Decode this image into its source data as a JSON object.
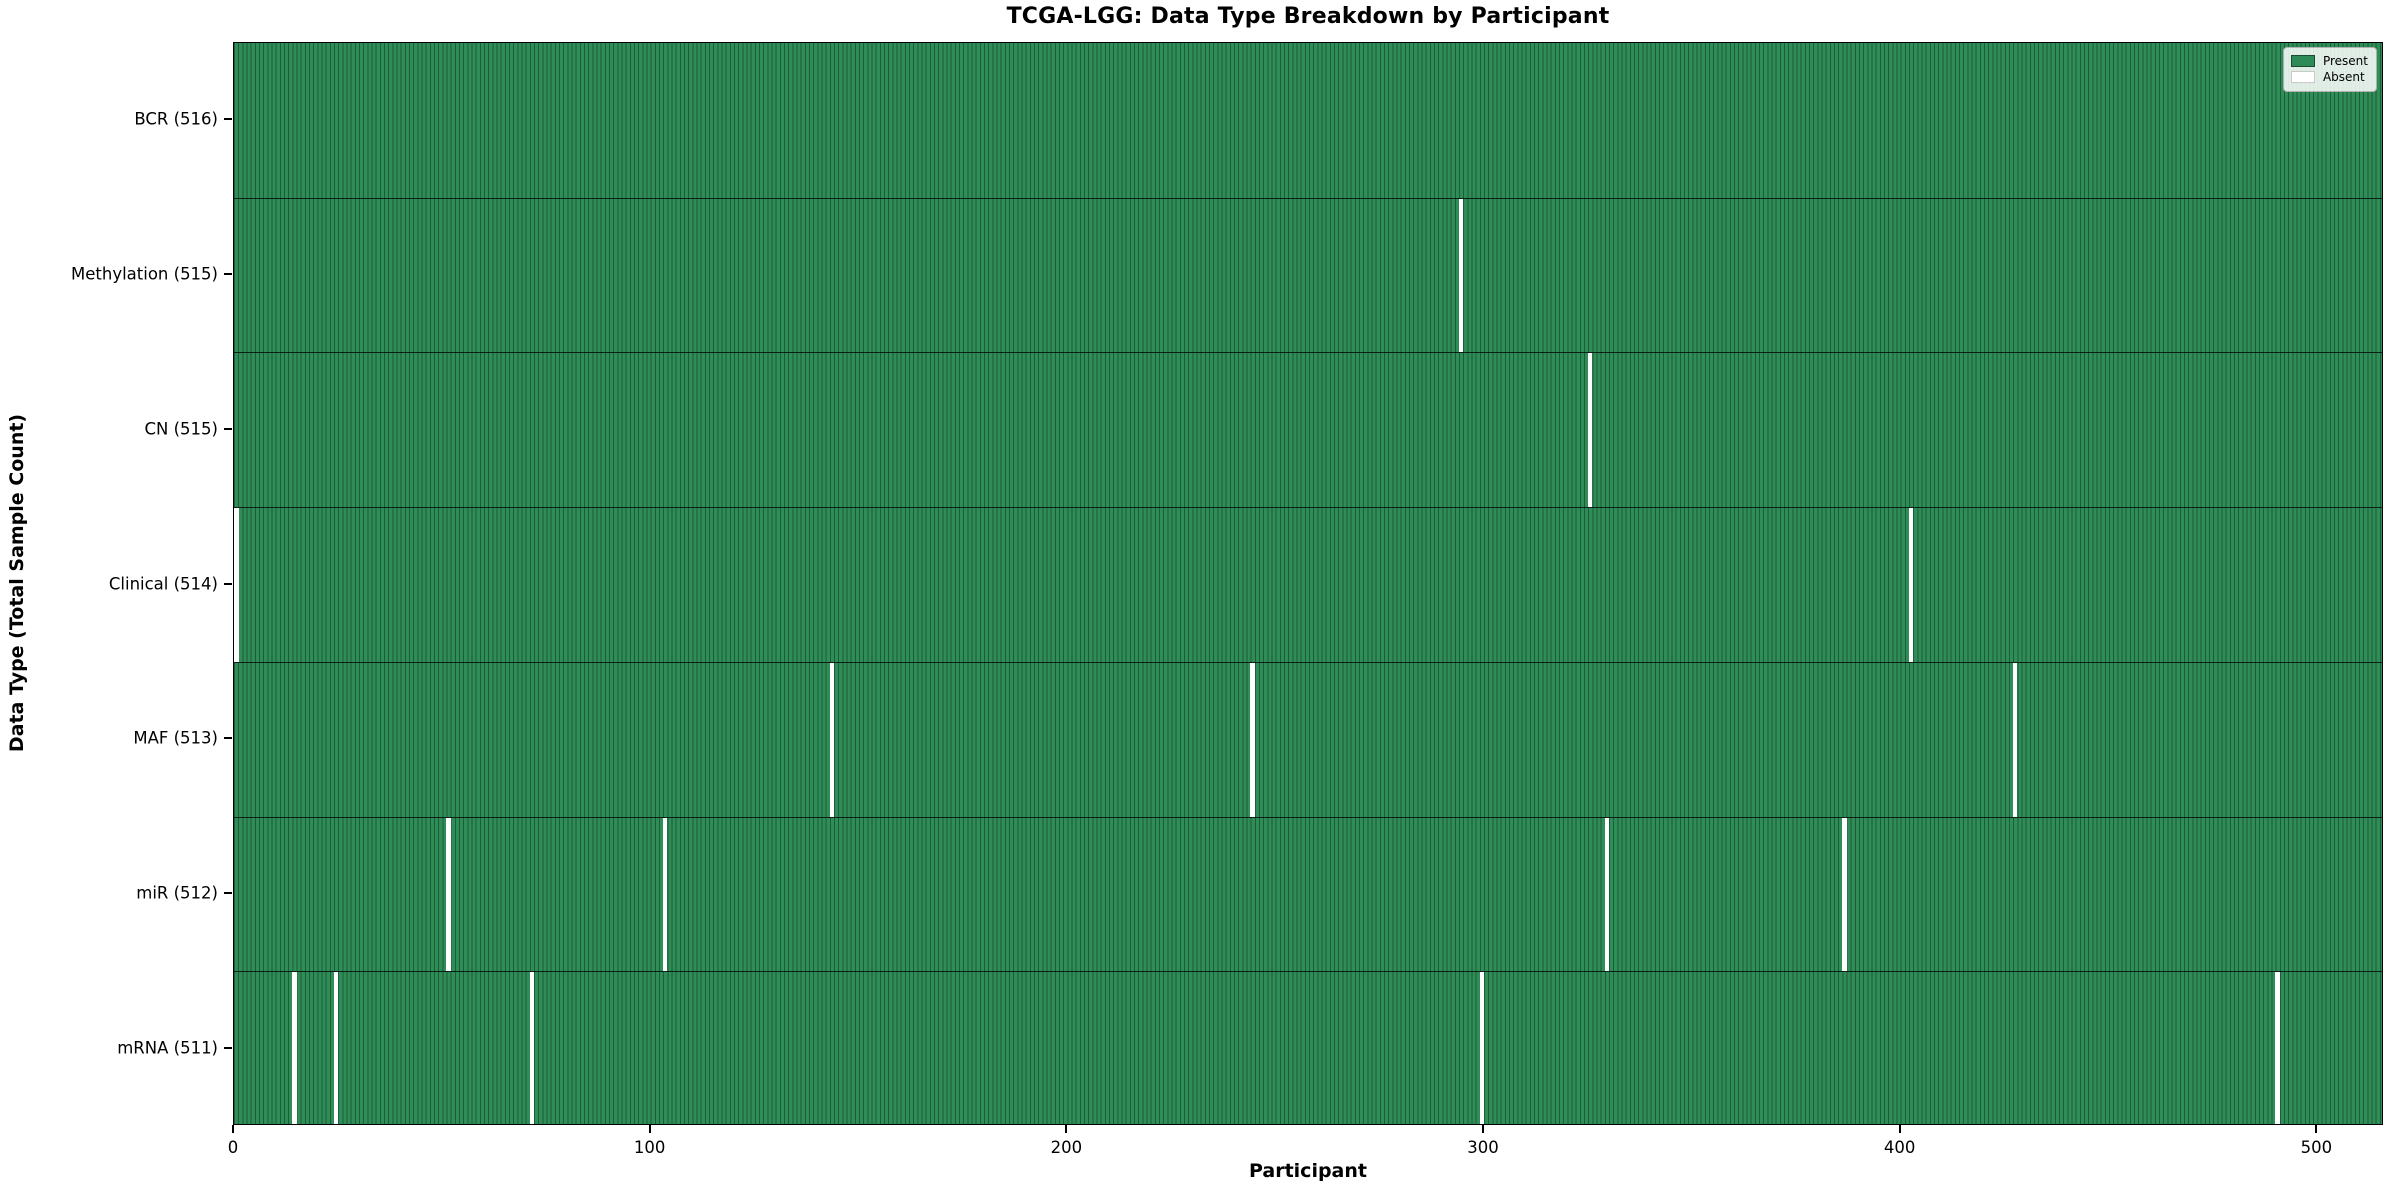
{
  "title": "TCGA-LGG: Data Type Breakdown by Participant",
  "chart_data": {
    "type": "heatmap",
    "subtype": "presence-absence-matrix",
    "title": "TCGA-LGG: Data Type Breakdown by Participant",
    "xlabel": "Participant",
    "ylabel": "Data Type (Total Sample Count)",
    "x_ticks": [
      0,
      100,
      200,
      300,
      400,
      500
    ],
    "x_range": [
      0,
      516
    ],
    "n_participants": 516,
    "grid": false,
    "legend_position": "upper right",
    "legend": [
      {
        "label": "Present",
        "color": "#2e8b57"
      },
      {
        "label": "Absent",
        "color": "#ffffff"
      }
    ],
    "colors": {
      "present_fill": "#2f8d58",
      "present_edge": "#1d5c39",
      "absent": "#ffffff",
      "axis": "#000000"
    },
    "rows": [
      {
        "label": "BCR (516)",
        "name": "BCR",
        "total": 516,
        "absent_participants": []
      },
      {
        "label": "Methylation (515)",
        "name": "Methylation",
        "total": 515,
        "absent_participants": [
          294
        ]
      },
      {
        "label": "CN (515)",
        "name": "CN",
        "total": 515,
        "absent_participants": [
          325
        ]
      },
      {
        "label": "Clinical (514)",
        "name": "Clinical",
        "total": 514,
        "absent_participants": [
          0,
          402
        ]
      },
      {
        "label": "MAF (513)",
        "name": "MAF",
        "total": 513,
        "absent_participants": [
          143,
          244,
          427
        ]
      },
      {
        "label": "miR (512)",
        "name": "miR",
        "total": 512,
        "absent_participants": [
          51,
          103,
          329,
          386
        ]
      },
      {
        "label": "mRNA (511)",
        "name": "mRNA",
        "total": 511,
        "absent_participants": [
          14,
          24,
          71,
          299,
          490
        ]
      }
    ]
  }
}
